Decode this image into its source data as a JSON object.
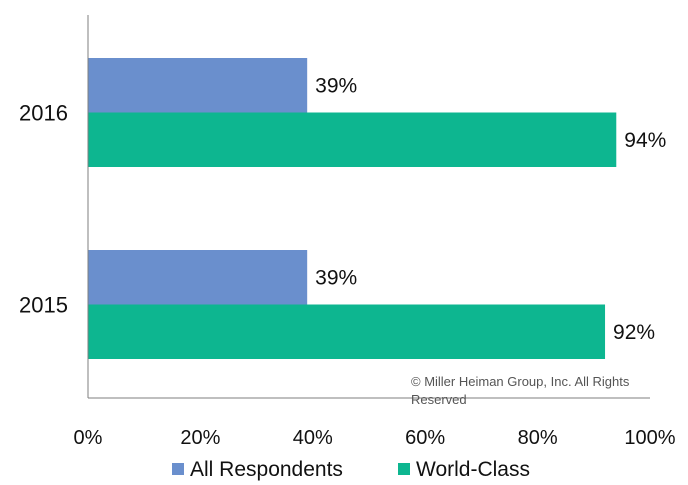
{
  "chart_data": {
    "type": "bar",
    "orientation": "horizontal",
    "categories": [
      "2016",
      "2015"
    ],
    "series": [
      {
        "name": "All Respondents",
        "values": [
          39,
          39
        ],
        "color": "#6a8fcd",
        "labels": [
          "39%",
          "39%"
        ]
      },
      {
        "name": "World-Class",
        "values": [
          94,
          92
        ],
        "color": "#0db690",
        "labels": [
          "94%",
          "92%"
        ]
      }
    ],
    "xlim": [
      0,
      100
    ],
    "x_ticks": [
      0,
      20,
      40,
      60,
      80,
      100
    ],
    "x_tick_labels": [
      "0%",
      "20%",
      "40%",
      "60%",
      "80%",
      "100%"
    ],
    "grid": false,
    "legend_position": "bottom",
    "title": "",
    "xlabel": "",
    "ylabel": ""
  },
  "copyright": {
    "line1": "© Miller Heiman Group, Inc. All Rights",
    "line2": "Reserved"
  }
}
